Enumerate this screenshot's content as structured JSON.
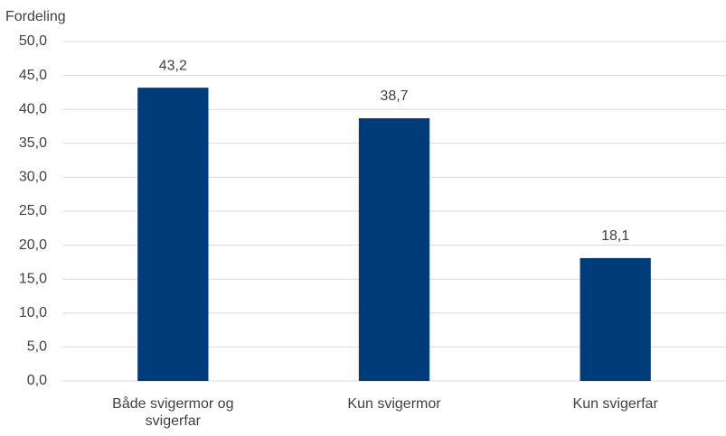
{
  "chart_data": {
    "type": "bar",
    "y_label": "Fordeling",
    "categories": [
      "Både svigermor og svigerfar",
      "Kun svigermor",
      "Kun svigerfar"
    ],
    "values": [
      43.2,
      38.7,
      18.1
    ],
    "value_labels": [
      "43,2",
      "38,7",
      "18,1"
    ],
    "color": "#003b7a",
    "ylim": [
      0,
      50
    ],
    "yticks": [
      {
        "value": 0,
        "label": "0,0"
      },
      {
        "value": 5,
        "label": "5,0"
      },
      {
        "value": 10,
        "label": "10,0"
      },
      {
        "value": 15,
        "label": "15,0"
      },
      {
        "value": 20,
        "label": "20,0"
      },
      {
        "value": 25,
        "label": "25,0"
      },
      {
        "value": 30,
        "label": "30,0"
      },
      {
        "value": 35,
        "label": "35,0"
      },
      {
        "value": 40,
        "label": "40,0"
      },
      {
        "value": 45,
        "label": "45,0"
      },
      {
        "value": 50,
        "label": "50,0"
      }
    ],
    "grid": true
  }
}
